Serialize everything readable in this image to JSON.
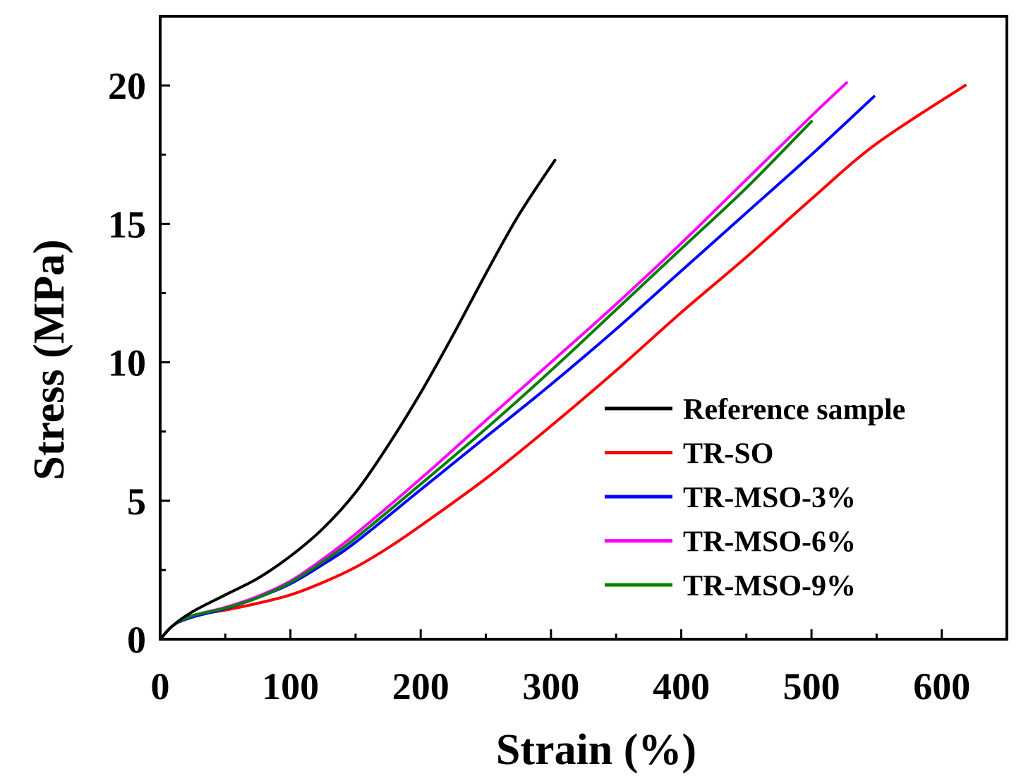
{
  "chart_data": {
    "type": "line",
    "title": "",
    "xlabel": "Strain (%)",
    "ylabel": "Stress (MPa)",
    "xlim": [
      0,
      650
    ],
    "ylim": [
      0,
      22.5
    ],
    "xticks": [
      0,
      100,
      200,
      300,
      400,
      500,
      600
    ],
    "yticks": [
      0,
      5,
      10,
      15,
      20
    ],
    "legend_position": "center-right",
    "grid": false,
    "series": [
      {
        "name": "Reference sample",
        "color": "#000000",
        "points": [
          [
            0,
            0
          ],
          [
            10,
            0.5
          ],
          [
            25,
            1.0
          ],
          [
            50,
            1.6
          ],
          [
            75,
            2.2
          ],
          [
            100,
            3.0
          ],
          [
            125,
            4.0
          ],
          [
            150,
            5.3
          ],
          [
            175,
            7.0
          ],
          [
            200,
            8.9
          ],
          [
            225,
            11.0
          ],
          [
            250,
            13.2
          ],
          [
            275,
            15.3
          ],
          [
            303,
            17.3
          ]
        ]
      },
      {
        "name": "TR-SO",
        "color": "#ff0000",
        "points": [
          [
            0,
            0
          ],
          [
            10,
            0.5
          ],
          [
            25,
            0.85
          ],
          [
            50,
            1.05
          ],
          [
            75,
            1.3
          ],
          [
            100,
            1.6
          ],
          [
            125,
            2.05
          ],
          [
            150,
            2.6
          ],
          [
            175,
            3.3
          ],
          [
            200,
            4.1
          ],
          [
            250,
            5.8
          ],
          [
            300,
            7.7
          ],
          [
            350,
            9.7
          ],
          [
            400,
            11.8
          ],
          [
            450,
            13.8
          ],
          [
            500,
            15.9
          ],
          [
            550,
            17.9
          ],
          [
            618,
            20.0
          ]
        ]
      },
      {
        "name": "TR-MSO-3%",
        "color": "#0000ff",
        "points": [
          [
            0,
            0
          ],
          [
            10,
            0.5
          ],
          [
            25,
            0.8
          ],
          [
            50,
            1.1
          ],
          [
            75,
            1.5
          ],
          [
            100,
            2.0
          ],
          [
            125,
            2.7
          ],
          [
            150,
            3.5
          ],
          [
            200,
            5.4
          ],
          [
            250,
            7.3
          ],
          [
            300,
            9.2
          ],
          [
            350,
            11.2
          ],
          [
            400,
            13.3
          ],
          [
            450,
            15.4
          ],
          [
            500,
            17.5
          ],
          [
            548,
            19.6
          ]
        ]
      },
      {
        "name": "TR-MSO-6%",
        "color": "#ff00ff",
        "points": [
          [
            0,
            0
          ],
          [
            10,
            0.5
          ],
          [
            25,
            0.85
          ],
          [
            50,
            1.15
          ],
          [
            75,
            1.55
          ],
          [
            100,
            2.1
          ],
          [
            125,
            2.9
          ],
          [
            150,
            3.8
          ],
          [
            200,
            5.8
          ],
          [
            250,
            7.9
          ],
          [
            300,
            10.0
          ],
          [
            350,
            12.1
          ],
          [
            400,
            14.3
          ],
          [
            450,
            16.6
          ],
          [
            500,
            18.9
          ],
          [
            527,
            20.1
          ]
        ]
      },
      {
        "name": "TR-MSO-9%",
        "color": "#008000",
        "points": [
          [
            0,
            0
          ],
          [
            10,
            0.5
          ],
          [
            25,
            0.85
          ],
          [
            50,
            1.12
          ],
          [
            75,
            1.5
          ],
          [
            100,
            2.05
          ],
          [
            125,
            2.8
          ],
          [
            150,
            3.65
          ],
          [
            200,
            5.6
          ],
          [
            250,
            7.6
          ],
          [
            300,
            9.7
          ],
          [
            350,
            11.9
          ],
          [
            400,
            14.1
          ],
          [
            450,
            16.3
          ],
          [
            500,
            18.7
          ]
        ]
      }
    ]
  }
}
